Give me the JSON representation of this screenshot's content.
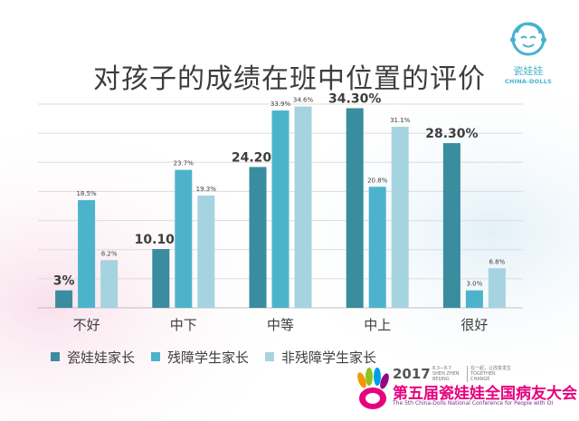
{
  "logo": {
    "icon": "baby-face-icon",
    "brand_cn": "瓷娃娃",
    "brand_en": "CHINA-DOLLS",
    "color": "#45b3cf"
  },
  "colors": {
    "series": [
      "#3a8c9f",
      "#4db3cc",
      "#a6d3e0"
    ],
    "grid": "#dcdcdc",
    "axis": "#bfbfbf",
    "text": "#3d3d3d"
  },
  "event": {
    "year": "2017",
    "dates": [
      "8.3—8.7",
      "SHEN ZHEN",
      "BEIJING"
    ],
    "slogan": [
      "在一起，让改变发生",
      "TOGETHER",
      "CHANGE"
    ],
    "name_cn": "第五届瓷娃娃全国病友大会",
    "name_en": "The 5th China-Dolls National Conference for People with OI",
    "accent": "#e6007e"
  },
  "chart_data": {
    "type": "bar",
    "title": "对孩子的成绩在班中位置的评价",
    "xlabel": "",
    "ylabel": "",
    "ylim": [
      0,
      35
    ],
    "grid": true,
    "legend_position": "bottom-left",
    "categories": [
      "不好",
      "中下",
      "中等",
      "中上",
      "很好"
    ],
    "series": [
      {
        "name": "瓷娃娃家长",
        "values": [
          3,
          10.1,
          24.2,
          34.3,
          28.3
        ],
        "labels": [
          "3%",
          "10.10%",
          "24.20%",
          "34.30%",
          "28.30%"
        ]
      },
      {
        "name": "残障学生家长",
        "values": [
          18.5,
          23.7,
          33.9,
          20.8,
          3.0
        ],
        "labels": [
          "18.5%",
          "23.7%",
          "33.9%",
          "20.8%",
          "3.0%"
        ]
      },
      {
        "name": "非残障学生家长",
        "values": [
          8.2,
          19.3,
          34.6,
          31.1,
          6.8
        ],
        "labels": [
          "8.2%",
          "19.3%",
          "34.6%",
          "31.1%",
          "6.8%"
        ]
      }
    ]
  }
}
